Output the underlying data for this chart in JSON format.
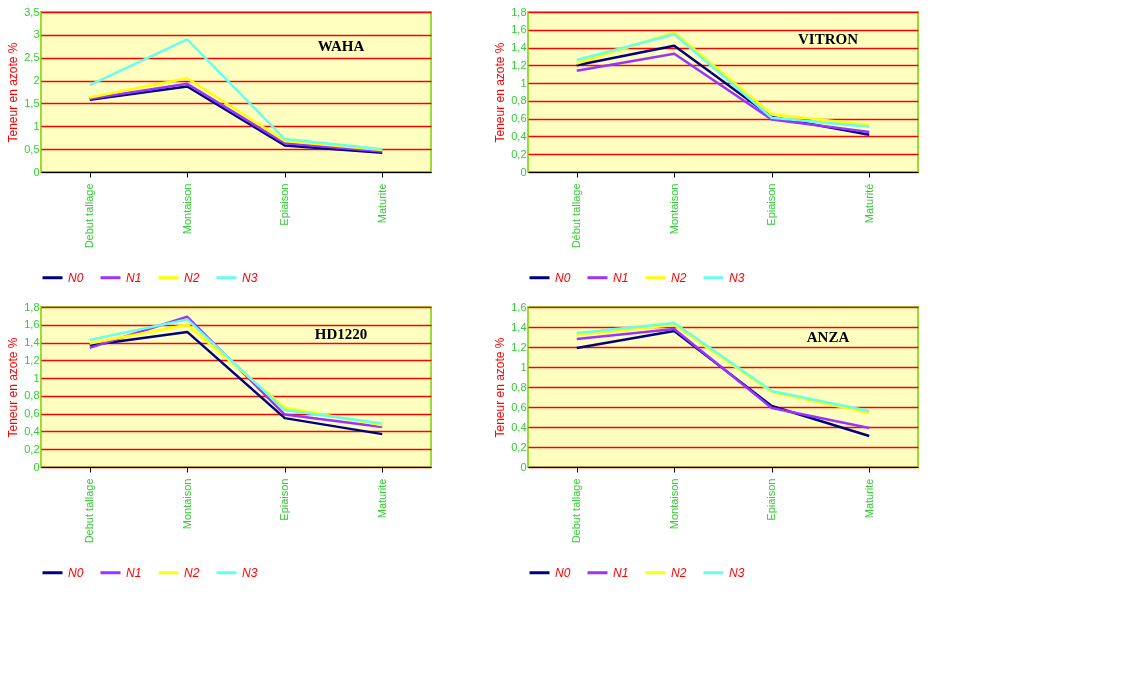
{
  "chart_data": [
    {
      "type": "line",
      "title": "WAHA",
      "ylabel": "Teneur en azote %",
      "categories": [
        "Debut tallage",
        "Montaison",
        "Epiaison",
        "Maturite"
      ],
      "ylim": [
        0,
        3.5
      ],
      "yticks": [
        0,
        {
          "value": 0.5,
          "label": "0,5"
        },
        1,
        {
          "value": 1.5,
          "label": "1,5"
        },
        2,
        {
          "value": 2.5,
          "label": "2,5"
        },
        3,
        {
          "value": 3.5,
          "label": "3,5"
        }
      ],
      "grid": "y",
      "legend": "bottom",
      "marker": "none",
      "line_style": "solid",
      "series": [
        {
          "name": "N0",
          "color": "#000080",
          "values": [
            1.58,
            1.87,
            0.58,
            0.42
          ]
        },
        {
          "name": "N1",
          "color": "#9933ff",
          "values": [
            1.6,
            1.93,
            0.63,
            0.45
          ]
        },
        {
          "name": "N2",
          "color": "#ffff00",
          "values": [
            1.63,
            2.05,
            0.68,
            0.48
          ]
        },
        {
          "name": "N3",
          "color": "#66ffee",
          "values": [
            1.9,
            2.9,
            0.72,
            0.5
          ]
        }
      ]
    },
    {
      "type": "line",
      "title": "VITRON",
      "ylabel": "Teneur en azote %",
      "categories": [
        "Début tallage",
        "Montaison",
        "Epiaison",
        "Maturité"
      ],
      "ylim": [
        0,
        1.8
      ],
      "yticks": [
        0,
        {
          "value": 0.2,
          "label": "0,2"
        },
        {
          "value": 0.4,
          "label": "0,4"
        },
        {
          "value": 0.6,
          "label": "0,6"
        },
        {
          "value": 0.8,
          "label": "0,8"
        },
        1,
        {
          "value": 1.2,
          "label": "1,2"
        },
        {
          "value": 1.4,
          "label": "1,4"
        },
        {
          "value": 1.6,
          "label": "1,6"
        },
        {
          "value": 1.8,
          "label": "1,8"
        }
      ],
      "grid": "y",
      "legend": "bottom",
      "marker": "none",
      "line_style": "solid",
      "series": [
        {
          "name": "N0",
          "color": "#000080",
          "values": [
            1.2,
            1.42,
            0.62,
            0.42
          ]
        },
        {
          "name": "N1",
          "color": "#9933ff",
          "values": [
            1.14,
            1.33,
            0.59,
            0.45
          ]
        },
        {
          "name": "N2",
          "color": "#ffff00",
          "values": [
            1.22,
            1.57,
            0.65,
            0.53
          ]
        },
        {
          "name": "N3",
          "color": "#66ffee",
          "values": [
            1.26,
            1.55,
            0.61,
            0.51
          ]
        }
      ]
    },
    {
      "type": "line",
      "title": "HD1220",
      "ylabel": "Teneur en azote %",
      "categories": [
        "Debut tallage",
        "Montaison",
        "Epiaison",
        "Maturite"
      ],
      "ylim": [
        0,
        1.8
      ],
      "yticks": [
        0,
        {
          "value": 0.2,
          "label": "0,2"
        },
        {
          "value": 0.4,
          "label": "0,4"
        },
        {
          "value": 0.6,
          "label": "0,6"
        },
        {
          "value": 0.8,
          "label": "0,8"
        },
        1,
        {
          "value": 1.2,
          "label": "1,2"
        },
        {
          "value": 1.4,
          "label": "1,4"
        },
        {
          "value": 1.6,
          "label": "1,6"
        },
        {
          "value": 1.8,
          "label": "1,8"
        }
      ],
      "grid": "y",
      "legend": "bottom",
      "marker": "none",
      "line_style": "solid",
      "series": [
        {
          "name": "N0",
          "color": "#000080",
          "values": [
            1.37,
            1.52,
            0.55,
            0.37
          ]
        },
        {
          "name": "N1",
          "color": "#9933ff",
          "values": [
            1.34,
            1.69,
            0.59,
            0.45
          ]
        },
        {
          "name": "N2",
          "color": "#ffff00",
          "values": [
            1.39,
            1.6,
            0.67,
            0.47
          ]
        },
        {
          "name": "N3",
          "color": "#66ffee",
          "values": [
            1.43,
            1.66,
            0.64,
            0.49
          ]
        }
      ]
    },
    {
      "type": "line",
      "title": "ANZA",
      "ylabel": "Teneur en azote %",
      "categories": [
        "Debut tallage",
        "Montaison",
        "Epiaison",
        "Maturite"
      ],
      "ylim": [
        0,
        1.6
      ],
      "yticks": [
        0,
        {
          "value": 0.2,
          "label": "0,2"
        },
        {
          "value": 0.4,
          "label": "0,4"
        },
        {
          "value": 0.6,
          "label": "0,6"
        },
        {
          "value": 0.8,
          "label": "0,8"
        },
        1,
        {
          "value": 1.2,
          "label": "1,2"
        },
        {
          "value": 1.4,
          "label": "1,4"
        },
        {
          "value": 1.6,
          "label": "1,6"
        }
      ],
      "grid": "y",
      "legend": "bottom",
      "marker": "none",
      "line_style": "solid",
      "series": [
        {
          "name": "N0",
          "color": "#000080",
          "values": [
            1.19,
            1.36,
            0.61,
            0.31
          ]
        },
        {
          "name": "N1",
          "color": "#9933ff",
          "values": [
            1.28,
            1.38,
            0.59,
            0.39
          ]
        },
        {
          "name": "N2",
          "color": "#ffff00",
          "values": [
            1.32,
            1.42,
            0.75,
            0.54
          ]
        },
        {
          "name": "N3",
          "color": "#66ffee",
          "values": [
            1.34,
            1.44,
            0.76,
            0.56
          ]
        }
      ]
    }
  ]
}
